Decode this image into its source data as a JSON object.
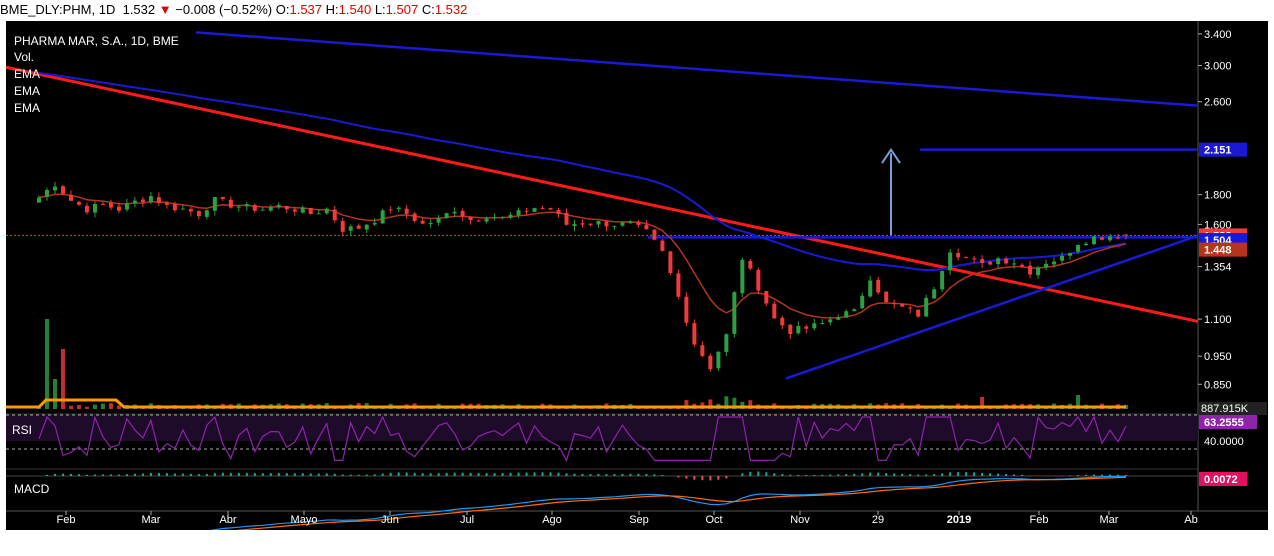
{
  "header": {
    "symbol": "BME_DLY:PHM, 1D",
    "last": "1.532",
    "change": "−0.008 (−0.52%)",
    "o_label": "O:",
    "o_value": "1.537",
    "h_label": "H:",
    "h_value": "1.540",
    "l_label": "L:",
    "l_value": "1.507",
    "c_label": "C:",
    "c_value": "1.532"
  },
  "legend": {
    "title": "PHARMA MAR, S.A., 1D, BME",
    "items": [
      "Vol.",
      "EMA",
      "EMA",
      "EMA"
    ]
  },
  "colors": {
    "background": "#000000",
    "candle_up": "#2ea043",
    "candle_down": "#ef3b3b",
    "ema_short": "#b5341c",
    "ema_long": "#1a1ad6",
    "trend_red": "#ff1a1a",
    "trend_blue": "#1a1ad6",
    "volume_ma": "#ff9900",
    "rsi": "#8e24aa",
    "macd_line": "#2196f3",
    "signal_line": "#ff6d00",
    "arrow": "#7a9ed6"
  },
  "chart_data": [
    {
      "type": "candlestick",
      "title": "PHARMA MAR, S.A., 1D, BME",
      "x_ticks": [
        "Feb",
        "Mar",
        "Abr",
        "Mayo",
        "Jun",
        "Jul",
        "Ago",
        "Sep",
        "Oct",
        "Nov",
        "29",
        "2019",
        "Feb",
        "Mar",
        "Ab"
      ],
      "y_scale": "log",
      "ylim": [
        0.78,
        3.55
      ],
      "y_ticks": [
        "3.400",
        "3.000",
        "2.600",
        "1.800",
        "1.600",
        "1.354",
        "1.100",
        "0.950",
        "0.850"
      ],
      "price_labels": [
        {
          "text": "2.151",
          "value": 2.151,
          "color": "#1a1ad6"
        },
        {
          "text": "1.532",
          "value": 1.532,
          "color": "#ef3b3b"
        },
        {
          "text": "1.504",
          "value": 1.504,
          "color": "#1a1ad6"
        },
        {
          "text": "1.448",
          "value": 1.448,
          "color": "#b5341c"
        }
      ],
      "ohlc_last": {
        "open": 1.537,
        "high": 1.54,
        "low": 1.507,
        "close": 1.532
      },
      "close_path": [
        [
          0,
          1.78
        ],
        [
          2,
          1.88
        ],
        [
          4,
          1.76
        ],
        [
          6,
          1.7
        ],
        [
          8,
          1.73
        ],
        [
          10,
          1.7
        ],
        [
          12,
          1.75
        ],
        [
          14,
          1.79
        ],
        [
          16,
          1.72
        ],
        [
          18,
          1.7
        ],
        [
          20,
          1.67
        ],
        [
          22,
          1.76
        ],
        [
          24,
          1.73
        ],
        [
          26,
          1.71
        ],
        [
          28,
          1.7
        ],
        [
          30,
          1.72
        ],
        [
          32,
          1.7
        ],
        [
          34,
          1.67
        ],
        [
          36,
          1.7
        ],
        [
          38,
          1.57
        ],
        [
          40,
          1.58
        ],
        [
          42,
          1.63
        ],
        [
          44,
          1.71
        ],
        [
          46,
          1.67
        ],
        [
          48,
          1.6
        ],
        [
          50,
          1.63
        ],
        [
          52,
          1.7
        ],
        [
          54,
          1.63
        ],
        [
          56,
          1.66
        ],
        [
          58,
          1.64
        ],
        [
          60,
          1.67
        ],
        [
          62,
          1.71
        ],
        [
          64,
          1.7
        ],
        [
          66,
          1.6
        ],
        [
          68,
          1.61
        ],
        [
          70,
          1.61
        ],
        [
          72,
          1.6
        ],
        [
          74,
          1.6
        ],
        [
          76,
          1.55
        ],
        [
          78,
          1.43
        ],
        [
          80,
          1.2
        ],
        [
          82,
          1.0
        ],
        [
          84,
          0.91
        ],
        [
          86,
          1.03
        ],
        [
          88,
          1.4
        ],
        [
          90,
          1.25
        ],
        [
          92,
          1.1
        ],
        [
          94,
          1.05
        ],
        [
          96,
          1.06
        ],
        [
          98,
          1.08
        ],
        [
          100,
          1.12
        ],
        [
          102,
          1.13
        ],
        [
          104,
          1.3
        ],
        [
          106,
          1.17
        ],
        [
          108,
          1.15
        ],
        [
          110,
          1.12
        ],
        [
          112,
          1.25
        ],
        [
          114,
          1.45
        ],
        [
          116,
          1.4
        ],
        [
          118,
          1.36
        ],
        [
          120,
          1.4
        ],
        [
          122,
          1.38
        ],
        [
          124,
          1.33
        ],
        [
          126,
          1.38
        ],
        [
          128,
          1.4
        ],
        [
          130,
          1.49
        ],
        [
          132,
          1.52
        ],
        [
          134,
          1.53
        ],
        [
          136,
          1.532
        ]
      ],
      "volume": {
        "last": "887.915K"
      },
      "rsi": {
        "last": "63.2555",
        "reference": "40.0000"
      },
      "macd": {
        "last": "0.0072"
      }
    }
  ],
  "labels": {
    "vol_value": "887.915K",
    "rsi_label": "RSI",
    "rsi_value": "63.2555",
    "rsi_ref": "40.0000",
    "macd_label": "MACD",
    "macd_value": "0.0072"
  }
}
